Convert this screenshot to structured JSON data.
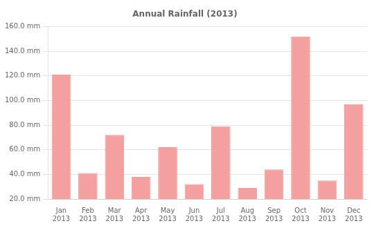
{
  "chart_data": {
    "type": "bar",
    "title": "Annual Rainfall (2013)",
    "categories": [
      "Jan\n2013",
      "Feb\n2013",
      "Mar\n2013",
      "Apr\n2013",
      "May\n2013",
      "Jun\n2013",
      "Jul\n2013",
      "Aug\n2013",
      "Sep\n2013",
      "Oct\n2013",
      "Nov\n2013",
      "Dec\n2013"
    ],
    "values": [
      121.0,
      41.0,
      72.0,
      38.0,
      62.0,
      32.0,
      79.0,
      29.0,
      44.0,
      152.0,
      35.0,
      97.0
    ],
    "color": "#f4a0a0",
    "ylim": [
      20.0,
      160.0
    ],
    "yticks": [
      {
        "value": 20.0,
        "label": "20.0 mm"
      },
      {
        "value": 40.0,
        "label": "40.0 mm"
      },
      {
        "value": 60.0,
        "label": "60.0 mm"
      },
      {
        "value": 80.0,
        "label": "80.0 mm"
      },
      {
        "value": 100.0,
        "label": "100.0 mm"
      },
      {
        "value": 120.0,
        "label": "120.0 mm"
      },
      {
        "value": 140.0,
        "label": "140.0 mm"
      },
      {
        "value": 160.0,
        "label": "160.0 mm"
      }
    ],
    "grid": true
  }
}
